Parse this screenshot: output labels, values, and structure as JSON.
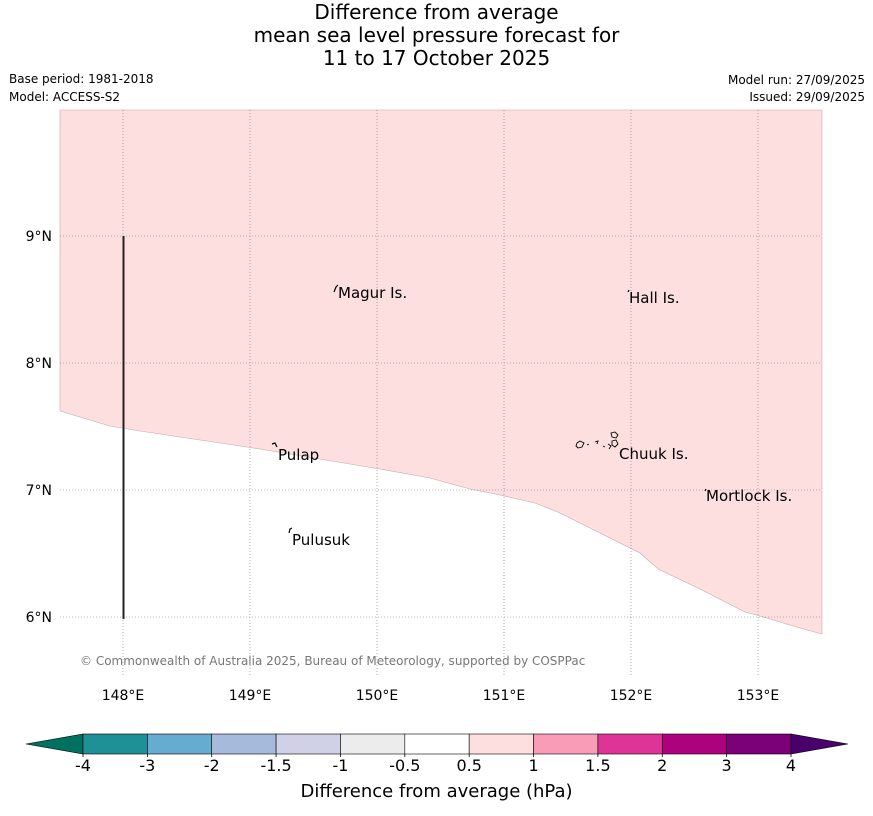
{
  "title": {
    "line1": "Difference from average",
    "line2": "mean sea level pressure forecast for",
    "line3": "11 to 17 October 2025"
  },
  "meta": {
    "base_period": "Base period: 1981-2018",
    "model": "Model: ACCESS-S2",
    "model_run": "Model run: 27/09/2025",
    "issued": "Issued: 29/09/2025"
  },
  "map": {
    "lat_labels": [
      "9°N",
      "8°N",
      "7°N",
      "6°N"
    ],
    "lon_labels": [
      "148°E",
      "149°E",
      "150°E",
      "151°E",
      "152°E",
      "153°E"
    ],
    "places": [
      "Magur Is.",
      "Hall Is.",
      "Pulap",
      "Chuuk Is.",
      "Mortlock Is.",
      "Pulusuk"
    ],
    "anomaly_band": "0.5 to 1",
    "anomaly_color": "#fddfdf",
    "copyright": "© Commonwealth of Australia 2025, Bureau of Meteorology, supported by COSPPac"
  },
  "colorbar": {
    "colors": [
      "#007060",
      "#1e9096",
      "#66abd0",
      "#a6bbdb",
      "#d0d1e6",
      "#ececec",
      "#ffffff",
      "#fddfdf",
      "#f99cb7",
      "#de3497",
      "#ae017e",
      "#7a0177",
      "#49006a"
    ],
    "tick_labels": [
      "-4",
      "-3",
      "-2",
      "-1.5",
      "-1",
      "-0.5",
      "0.5",
      "1",
      "1.5",
      "2",
      "3",
      "4"
    ],
    "label": "Difference from average (hPa)"
  }
}
